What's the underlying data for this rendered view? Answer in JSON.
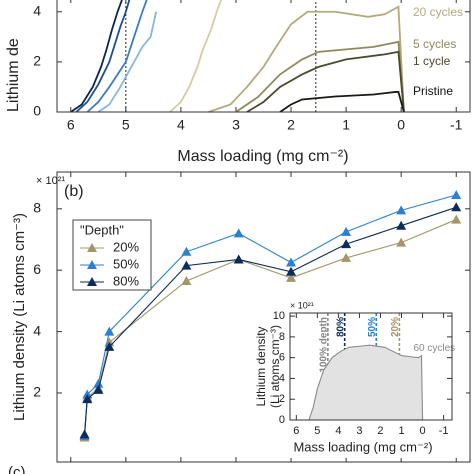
{
  "chart_data": [
    {
      "type": "line",
      "xlabel": "Mass loading (mg cm⁻²)",
      "ylabel": "Lithium de",
      "xlim": [
        6.25,
        -1.25
      ],
      "ylim": [
        0,
        4.55
      ],
      "xticks": [
        6,
        5,
        4,
        3,
        2,
        1,
        0,
        -1
      ],
      "yticks": [
        0,
        2,
        4
      ],
      "vlines": [
        {
          "x": 5
        },
        {
          "x": 1.55
        }
      ],
      "series": [
        {
          "color": "#0a2550",
          "x": [
            6.0,
            5.8,
            5.6,
            5.45,
            5.35,
            5.25,
            5.15,
            5.05
          ],
          "values": [
            0,
            0.3,
            1,
            1.8,
            2.5,
            3.3,
            4,
            4.6
          ]
        },
        {
          "color": "#1b4f8f",
          "x": [
            5.9,
            5.7,
            5.5,
            5.3,
            5.2,
            5.1,
            5.0,
            4.92
          ],
          "values": [
            0,
            0.4,
            1.1,
            2,
            2.7,
            3.4,
            4,
            4.6
          ]
        },
        {
          "color": "#3a7cc4",
          "x": [
            5.7,
            5.5,
            5.3,
            5.0,
            4.85,
            4.7,
            4.6
          ],
          "values": [
            0,
            0.4,
            1,
            2,
            3,
            4,
            4.6
          ]
        },
        {
          "color": "#86b6e4",
          "x": [
            5.5,
            5.3,
            5.1,
            4.85,
            4.7,
            4.55,
            4.45
          ],
          "values": [
            0,
            0.3,
            1,
            2,
            2.6,
            3,
            4
          ]
        },
        {
          "color": "#d2cda4",
          "x": [
            4.2,
            4.0,
            3.85,
            3.7,
            3.6,
            3.45,
            3.35,
            3.25
          ],
          "values": [
            0,
            0.4,
            1,
            1.8,
            2.5,
            3.3,
            4,
            4.6
          ]
        },
        {
          "name": "20 cycles",
          "color": "#b3aa7c",
          "x": [
            3.5,
            3.1,
            2.8,
            2.5,
            2.3,
            2.0,
            1.7,
            1.2,
            0.6,
            0.3,
            0.05,
            -0.05
          ],
          "values": [
            0,
            0.3,
            1,
            1.8,
            2.5,
            3.5,
            4,
            4,
            3.8,
            3.9,
            4.2,
            0
          ]
        },
        {
          "name": "5 cycles",
          "color": "#8c8a5c",
          "x": [
            3.0,
            2.6,
            2.2,
            1.8,
            1.5,
            0.5,
            0.05,
            -0.05
          ],
          "values": [
            0,
            0.6,
            1.5,
            2.1,
            2.4,
            2.6,
            2.8,
            0
          ]
        },
        {
          "name": "1 cycle",
          "color": "#4a4a2c",
          "x": [
            2.8,
            2.5,
            2.2,
            1.8,
            1.5,
            1.0,
            0.3,
            0.05,
            -0.05
          ],
          "values": [
            0,
            0.4,
            1,
            1.5,
            1.8,
            2.1,
            2.3,
            2.4,
            0
          ]
        },
        {
          "name": "Pristine",
          "color": "#1a1a14",
          "x": [
            2.2,
            2.0,
            1.8,
            1.2,
            0.5,
            0.1,
            0.05,
            -0.05
          ],
          "values": [
            0,
            0.3,
            0.5,
            0.62,
            0.7,
            0.8,
            0.8,
            0
          ]
        }
      ]
    },
    {
      "type": "line",
      "panel_label": "(b)",
      "y_multiplier": "× 10²¹",
      "ylabel": "Lithium density (Li atoms cm⁻³)",
      "xlim": [
        6.25,
        -1.25
      ],
      "ylim": [
        -0.25,
        9.2
      ],
      "xticks": [
        6,
        5,
        4,
        3,
        2,
        1,
        0,
        -1
      ],
      "xtick_labels": false,
      "yticks": [
        2,
        4,
        6,
        8
      ],
      "legend_title": "\"Depth\"",
      "legend": "upper left",
      "x": [
        5.75,
        5.7,
        5.5,
        5.3,
        3.9,
        2.95,
        2.0,
        1.0,
        0,
        -1.0
      ],
      "series": [
        {
          "name": "20%",
          "color": "#a3976a",
          "values": [
            0.55,
            1.85,
            2.15,
            3.65,
            5.65,
            6.35,
            5.75,
            6.4,
            6.9,
            7.65
          ]
        },
        {
          "name": "50%",
          "color": "#2c80d2",
          "values": [
            0.6,
            1.95,
            2.3,
            4.0,
            6.6,
            7.2,
            6.25,
            7.25,
            7.95,
            8.45
          ]
        },
        {
          "name": "80%",
          "color": "#0e2b5c",
          "values": [
            0.65,
            1.8,
            2.1,
            3.5,
            6.15,
            6.35,
            5.95,
            6.85,
            7.45,
            8.05
          ]
        }
      ]
    },
    {
      "type": "area",
      "y_multiplier": "× 10²¹",
      "ylabel": [
        "Lithium density",
        "(Li atoms cm⁻³)"
      ],
      "xlabel": "Mass loading (mg cm⁻²)",
      "xlim": [
        6.3,
        -1.4
      ],
      "ylim": [
        0,
        10.3
      ],
      "xticks": [
        6,
        5,
        4,
        3,
        2,
        1,
        0,
        -1
      ],
      "yticks": [
        0,
        2,
        4,
        6,
        8,
        10
      ],
      "vlines": [
        {
          "x": 4.5,
          "label": "100% depth",
          "color": "#888888"
        },
        {
          "x": 3.7,
          "label": "80%",
          "color": "#0e2b5c"
        },
        {
          "x": 2.2,
          "label": "50%",
          "color": "#2c80d2"
        },
        {
          "x": 1.1,
          "label": "20%",
          "color": "#a3976a"
        }
      ],
      "series": [
        {
          "name": "60 cycles",
          "color": "#8a8a8a",
          "x": [
            5.4,
            5.2,
            5.0,
            4.7,
            4.3,
            3.9,
            3.5,
            3.0,
            2.5,
            1.8,
            1.4,
            1.0,
            0.6,
            0.2,
            0.05,
            0
          ],
          "values": [
            0,
            1.2,
            3,
            4.8,
            6,
            6.6,
            7,
            7.1,
            7.2,
            7,
            6.6,
            6.2,
            6.1,
            6,
            6.2,
            0
          ]
        }
      ]
    },
    {
      "panel_label": "(c)"
    }
  ]
}
